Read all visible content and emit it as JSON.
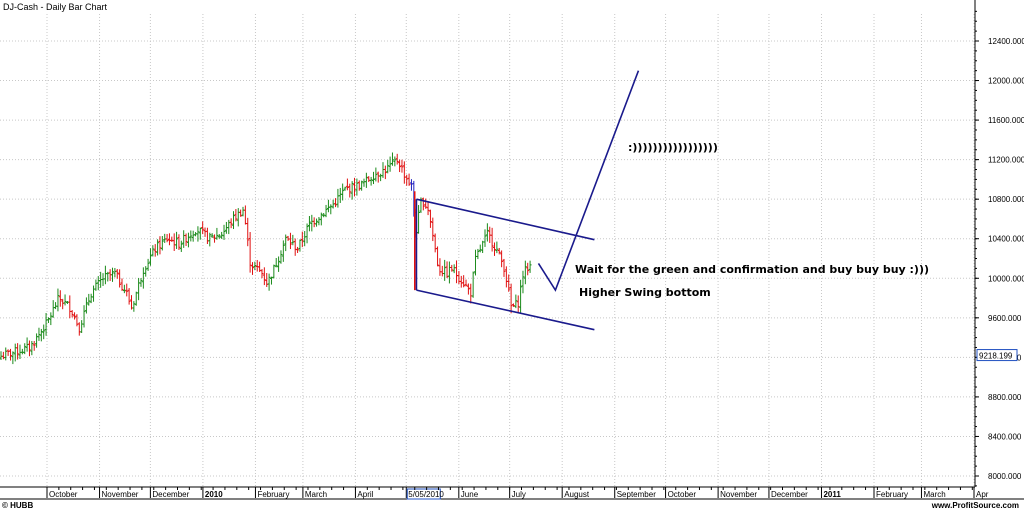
{
  "chart_data": {
    "type": "bar",
    "title": "DJ-Cash - Daily Bar Chart",
    "ylim": [
      7800,
      12800
    ],
    "yticks": [
      "8000.000",
      "8400.000",
      "8800.000",
      "9200.000",
      "9600.000",
      "10000.000",
      "10400.000",
      "10800.000",
      "11200.000",
      "11600.000",
      "12000.000",
      "12400.000"
    ],
    "last_price_label": "9218.199",
    "last_price_value": 9218.199,
    "month_labels": [
      {
        "label": "October",
        "bold": false
      },
      {
        "label": "November",
        "bold": false
      },
      {
        "label": "December",
        "bold": false
      },
      {
        "label": "2010",
        "bold": true
      },
      {
        "label": "February",
        "bold": false
      },
      {
        "label": "March",
        "bold": false
      },
      {
        "label": "April",
        "bold": false
      },
      {
        "label": "5/05/2010",
        "bold": false,
        "highlight": true
      },
      {
        "label": "June",
        "bold": false
      },
      {
        "label": "July",
        "bold": false
      },
      {
        "label": "August",
        "bold": false
      },
      {
        "label": "September",
        "bold": false
      },
      {
        "label": "October",
        "bold": false
      },
      {
        "label": "November",
        "bold": false
      },
      {
        "label": "December",
        "bold": false
      },
      {
        "label": "2011",
        "bold": true
      },
      {
        "label": "February",
        "bold": false
      },
      {
        "label": "March",
        "bold": false
      },
      {
        "label": "Apr",
        "bold": false
      }
    ],
    "price_path": [
      [
        "2009-09-21",
        9300
      ],
      [
        "2009-10-01",
        9550
      ],
      [
        "2009-10-08",
        9800
      ],
      [
        "2009-10-15",
        9700
      ],
      [
        "2009-10-20",
        9500
      ],
      [
        "2009-10-27",
        9850
      ],
      [
        "2009-11-03",
        10000
      ],
      [
        "2009-11-10",
        10050
      ],
      [
        "2009-11-17",
        9850
      ],
      [
        "2009-11-20",
        9700
      ],
      [
        "2009-11-27",
        10100
      ],
      [
        "2009-12-04",
        10300
      ],
      [
        "2009-12-11",
        10400
      ],
      [
        "2009-12-18",
        10350
      ],
      [
        "2009-12-28",
        10500
      ],
      [
        "2010-01-05",
        10400
      ],
      [
        "2010-01-12",
        10450
      ],
      [
        "2010-01-19",
        10600
      ],
      [
        "2010-01-25",
        10700
      ],
      [
        "2010-01-29",
        10150
      ],
      [
        "2010-02-05",
        10050
      ],
      [
        "2010-02-08",
        9950
      ],
      [
        "2010-02-12",
        10100
      ],
      [
        "2010-02-19",
        10400
      ],
      [
        "2010-02-26",
        10300
      ],
      [
        "2010-03-05",
        10550
      ],
      [
        "2010-03-12",
        10650
      ],
      [
        "2010-03-19",
        10750
      ],
      [
        "2010-03-26",
        10900
      ],
      [
        "2010-04-05",
        10950
      ],
      [
        "2010-04-12",
        11050
      ],
      [
        "2010-04-19",
        11100
      ],
      [
        "2010-04-26",
        11200
      ],
      [
        "2010-04-30",
        11050
      ],
      [
        "2010-05-05",
        10900
      ],
      [
        "2010-05-06",
        10400
      ],
      [
        "2010-05-10",
        10800
      ],
      [
        "2010-05-14",
        10700
      ],
      [
        "2010-05-20",
        10100
      ],
      [
        "2010-05-25",
        10050
      ],
      [
        "2010-05-28",
        10100
      ],
      [
        "2010-06-04",
        9950
      ],
      [
        "2010-06-08",
        9850
      ],
      [
        "2010-06-11",
        10200
      ],
      [
        "2010-06-18",
        10450
      ],
      [
        "2010-06-23",
        10300
      ],
      [
        "2010-06-28",
        10100
      ],
      [
        "2010-07-02",
        9700
      ],
      [
        "2010-07-06",
        9750
      ],
      [
        "2010-07-09",
        10050
      ],
      [
        "2010-07-14",
        10150
      ]
    ]
  },
  "annotations": {
    "smiley": ":)))))))))))))))))",
    "wait_text": "Wait for the green and confirmation and buy buy buy :)))",
    "swing_text": "Higher Swing bottom"
  },
  "channel": {
    "upper": [
      [
        "2010-05-07",
        10800
      ],
      [
        "2010-08-20",
        10390
      ]
    ],
    "lower": [
      [
        "2010-05-07",
        9880
      ],
      [
        "2010-08-20",
        9480
      ]
    ],
    "left_edge": [
      [
        "2010-05-07",
        9880
      ],
      [
        "2010-05-07",
        10800
      ]
    ],
    "projection": [
      [
        "2010-07-18",
        10150
      ],
      [
        "2010-07-28",
        9880
      ],
      [
        "2010-09-15",
        12100
      ]
    ]
  },
  "footer": {
    "left": "© HUBB",
    "right": "www.ProfitSource.com"
  },
  "colors": {
    "up": "#1a8a1a",
    "down": "#e01010",
    "neutral": "#2020c0",
    "trend": "#1a1a8c",
    "grid": "#c8c8c8"
  }
}
